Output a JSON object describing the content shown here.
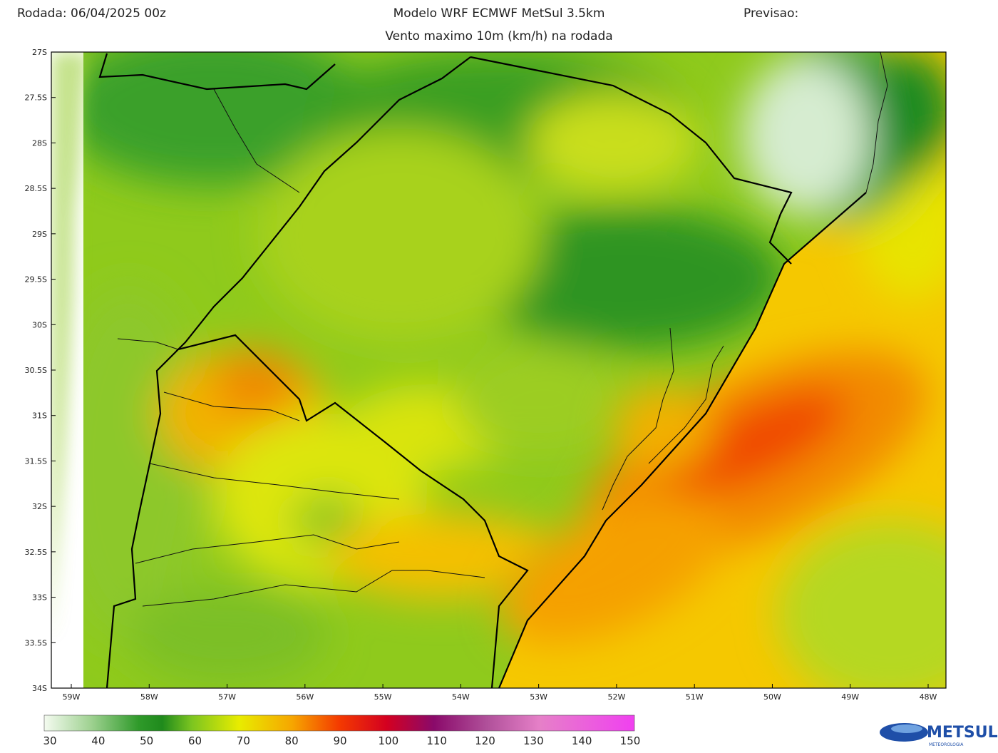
{
  "header": {
    "run": "Rodada: 06/04/2025 00z",
    "model": "Modelo WRF ECMWF MetSul 3.5km",
    "forecast": "Previsao:",
    "subtitle": "Vento maximo 10m (km/h) na rodada"
  },
  "map": {
    "lat_labels": [
      "27S",
      "27.5S",
      "28S",
      "28.5S",
      "29S",
      "29.5S",
      "30S",
      "30.5S",
      "31S",
      "31.5S",
      "32S",
      "32.5S",
      "33S",
      "33.5S",
      "34S"
    ],
    "lon_labels": [
      "59W",
      "58W",
      "57W",
      "56W",
      "55W",
      "54W",
      "53W",
      "52W",
      "51W",
      "50W",
      "49W",
      "48W"
    ]
  },
  "colorbar": {
    "labels": [
      30,
      40,
      50,
      60,
      70,
      80,
      90,
      100,
      110,
      120,
      130,
      140,
      150
    ]
  },
  "logo": {
    "name": "METSUL",
    "tagline": "METEOROLOGIA"
  }
}
